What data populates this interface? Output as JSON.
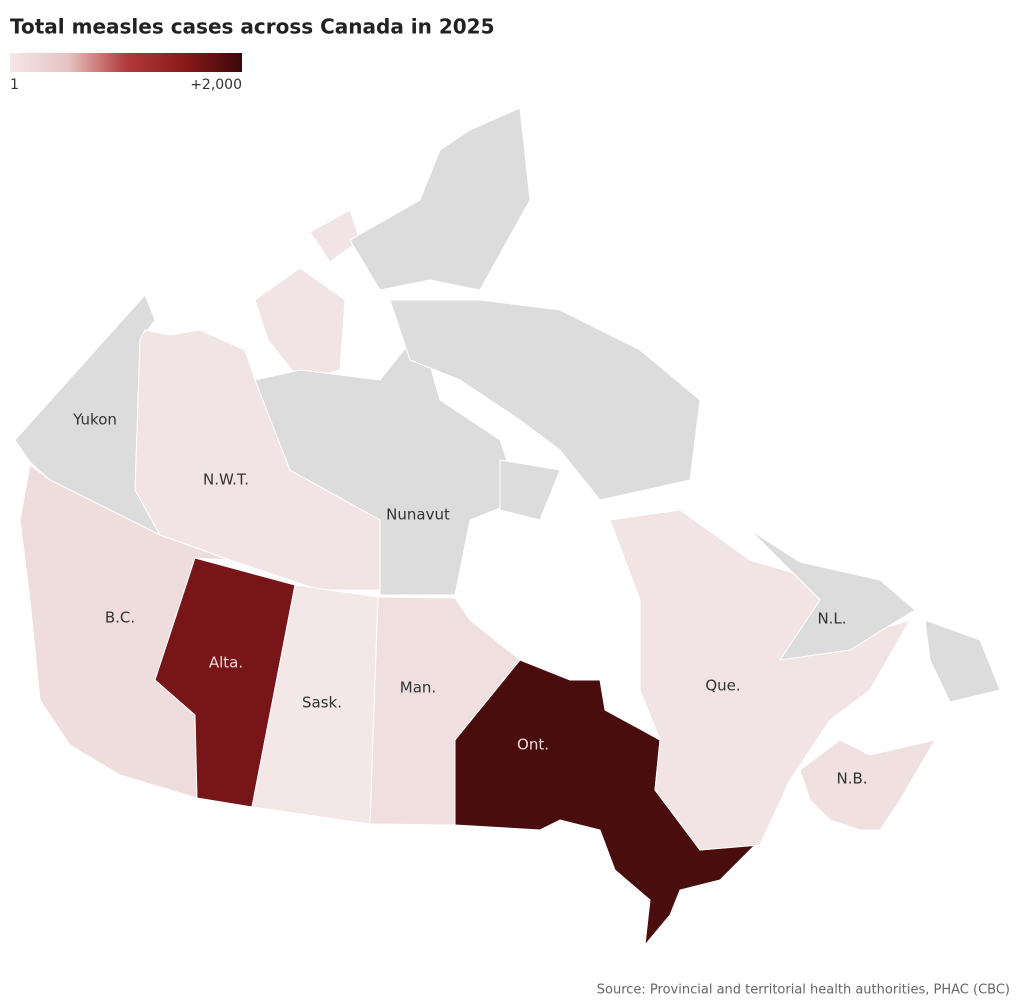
{
  "chart_data": {
    "type": "choropleth",
    "title": "Total measles cases across Canada in 2025",
    "legend": {
      "labels": [
        "1",
        "+2,000"
      ],
      "colors": [
        "#f4e8e8",
        "#e7c3c3",
        "#b13a3a",
        "#8b1a1a",
        "#3a0808"
      ]
    },
    "no_data_color": "#dcdcdc",
    "regions": [
      {
        "name": "Yukon",
        "color": "#dcdcdc",
        "label_color": "#333333"
      },
      {
        "name": "N.W.T.",
        "color": "#f2e4e4",
        "label_color": "#333333"
      },
      {
        "name": "Nunavut",
        "color": "#dcdcdc",
        "label_color": "#333333"
      },
      {
        "name": "B.C.",
        "color": "#efdcdc",
        "label_color": "#333333"
      },
      {
        "name": "Alta.",
        "color": "#771518",
        "label_color": "#f2d9d9"
      },
      {
        "name": "Sask.",
        "color": "#f3e7e7",
        "label_color": "#333333"
      },
      {
        "name": "Man.",
        "color": "#efdfdf",
        "label_color": "#333333"
      },
      {
        "name": "Ont.",
        "color": "#4a0d0d",
        "label_color": "#f2d9d9"
      },
      {
        "name": "Que.",
        "color": "#f2e4e4",
        "label_color": "#333333"
      },
      {
        "name": "N.L.",
        "color": "#dcdcdc",
        "label_color": "#333333"
      },
      {
        "name": "N.B.",
        "color": "#f0e0e0",
        "label_color": "#333333"
      }
    ],
    "source": "Source: Provincial and territorial health authorities, PHAC (CBC)"
  }
}
